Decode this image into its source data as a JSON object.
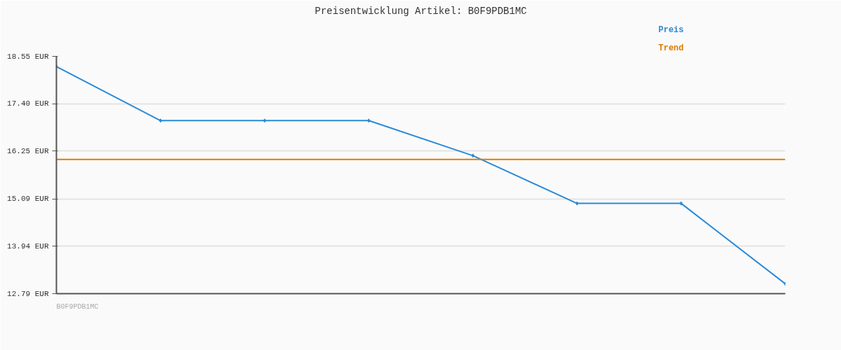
{
  "chart_data": {
    "type": "line",
    "title": "Preisentwicklung Artikel: B0F9PDB1MC",
    "categories": [
      null,
      null,
      null,
      null,
      null,
      null,
      null,
      null
    ],
    "series": [
      {
        "name": "Preis",
        "color": "#2a8ad8",
        "values": [
          18.3,
          16.99,
          16.99,
          16.99,
          16.14,
          14.98,
          14.98,
          13.03
        ],
        "marker": "diamond"
      },
      {
        "name": "Trend",
        "color": "#e07b00",
        "values": [
          16.05,
          16.05,
          16.05,
          16.05,
          16.05,
          16.05,
          16.05,
          16.05
        ],
        "marker": "none"
      }
    ],
    "ylim": [
      12.79,
      18.55
    ],
    "yticks": [
      {
        "value": 12.79,
        "label": "12.79 EUR"
      },
      {
        "value": 13.94,
        "label": "13.94 EUR"
      },
      {
        "value": 15.09,
        "label": "15.09 EUR"
      },
      {
        "value": 16.25,
        "label": "16.25 EUR"
      },
      {
        "value": 17.4,
        "label": "17.40 EUR"
      },
      {
        "value": 18.55,
        "label": "18.55 EUR"
      }
    ],
    "grid": "y",
    "tick_labels": "y",
    "annotations": [
      "B0F9PDB1MC"
    ]
  }
}
